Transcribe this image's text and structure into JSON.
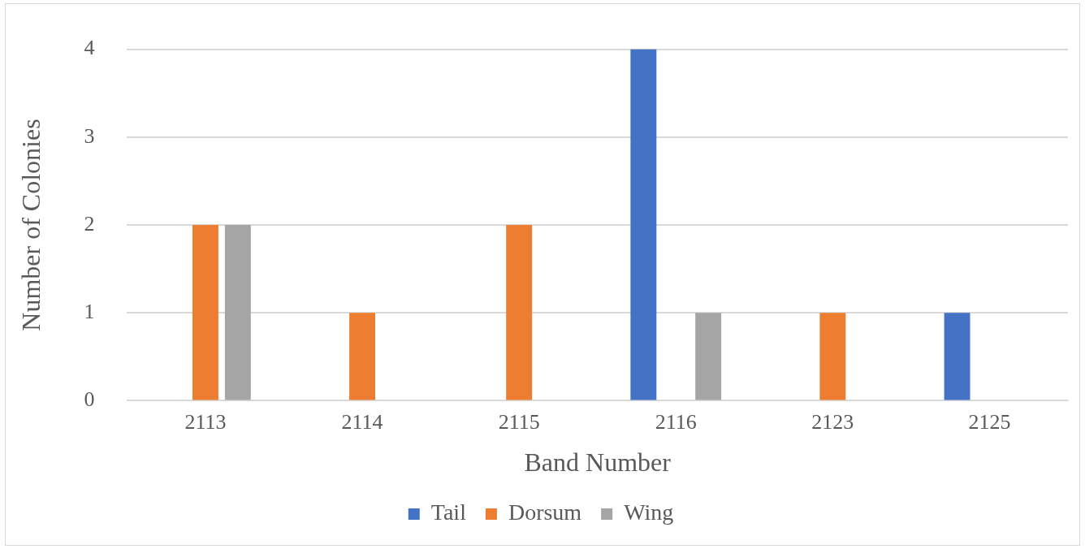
{
  "chart_data": {
    "type": "bar",
    "xlabel": "Band Number",
    "ylabel": "Number of Colonies",
    "categories": [
      "2113",
      "2114",
      "2115",
      "2116",
      "2123",
      "2125"
    ],
    "series": [
      {
        "name": "Tail",
        "color": "#4472c4",
        "values": [
          0,
          0,
          0,
          4,
          0,
          1
        ]
      },
      {
        "name": "Dorsum",
        "color": "#ed7d31",
        "values": [
          2,
          1,
          2,
          0,
          1,
          0
        ]
      },
      {
        "name": "Wing",
        "color": "#a5a5a5",
        "values": [
          2,
          0,
          0,
          1,
          0,
          0
        ]
      }
    ],
    "ylim": [
      0,
      4
    ],
    "yticks": [
      0,
      1,
      2,
      3,
      4
    ],
    "grid": "y",
    "legend": "bottom"
  }
}
